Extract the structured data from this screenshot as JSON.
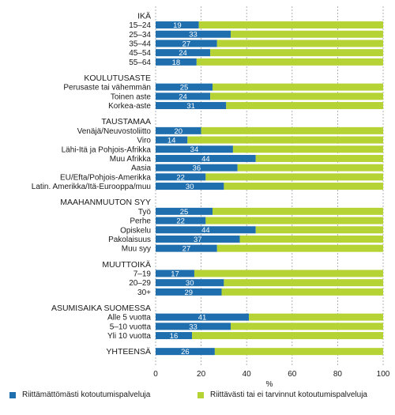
{
  "chart_data": {
    "type": "bar",
    "stacked": true,
    "orientation": "horizontal",
    "xlabel": "%",
    "xlim": [
      0,
      100
    ],
    "xticks": [
      0,
      20,
      40,
      60,
      80,
      100
    ],
    "grid": true,
    "legend_position": "bottom",
    "colors": {
      "insufficient": "#1f6fae",
      "sufficient": "#b5d334",
      "grid": "#9aa0a6"
    },
    "series": [
      {
        "name": "Riittämättömästi kotoutumispalveluja",
        "key": "insufficient"
      },
      {
        "name": "Riittävästi tai ei tarvinnut kotoutumispalveluja",
        "key": "sufficient"
      }
    ],
    "groups": [
      {
        "title": "IKÄ",
        "items": [
          {
            "label": "15–24",
            "value": 19
          },
          {
            "label": "25–34",
            "value": 33
          },
          {
            "label": "35–44",
            "value": 27
          },
          {
            "label": "45–54",
            "value": 24
          },
          {
            "label": "55–64",
            "value": 18
          }
        ]
      },
      {
        "title": "KOULUTUSASTE",
        "items": [
          {
            "label": "Perusaste tai vähemmän",
            "value": 25
          },
          {
            "label": "Toinen aste",
            "value": 24
          },
          {
            "label": "Korkea-aste",
            "value": 31
          }
        ]
      },
      {
        "title": "TAUSTAMAA",
        "items": [
          {
            "label": "Venäjä/Neuvostoliitto",
            "value": 20
          },
          {
            "label": "Viro",
            "value": 14
          },
          {
            "label": "Lähi-Itä ja Pohjois-Afrikka",
            "value": 34
          },
          {
            "label": "Muu Afrikka",
            "value": 44
          },
          {
            "label": "Aasia",
            "value": 36
          },
          {
            "label": "EU/Efta/Pohjois-Amerikka",
            "value": 22
          },
          {
            "label": "Latin. Amerikka/Itä-Eurooppa/muu",
            "value": 30
          }
        ]
      },
      {
        "title": "MAAHANMUUTON SYY",
        "items": [
          {
            "label": "Työ",
            "value": 25
          },
          {
            "label": "Perhe",
            "value": 22
          },
          {
            "label": "Opiskelu",
            "value": 44
          },
          {
            "label": "Pakolaisuus",
            "value": 37
          },
          {
            "label": "Muu syy",
            "value": 27
          }
        ]
      },
      {
        "title": "MUUTTOIKÄ",
        "items": [
          {
            "label": "7–19",
            "value": 17
          },
          {
            "label": "20–29",
            "value": 30
          },
          {
            "label": "30+",
            "value": 29
          }
        ]
      },
      {
        "title": "ASUMISAIKA SUOMESSA",
        "items": [
          {
            "label": "Alle 5 vuotta",
            "value": 41
          },
          {
            "label": "5–10 vuotta",
            "value": 33
          },
          {
            "label": "Yli 10 vuotta",
            "value": 16
          }
        ]
      },
      {
        "title": "YHTEENSÄ",
        "items": [
          {
            "label": "",
            "value": 26
          }
        ]
      }
    ]
  }
}
